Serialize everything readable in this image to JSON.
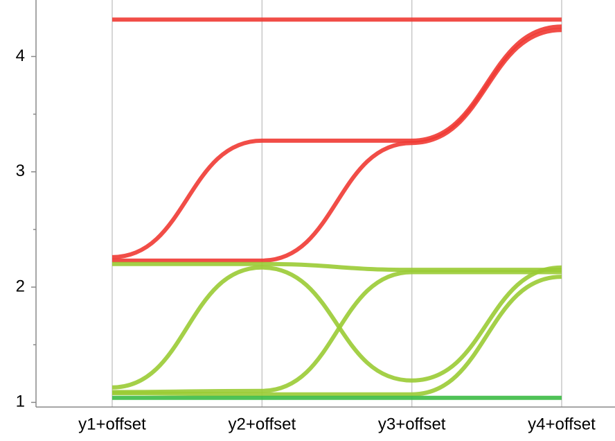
{
  "chart_data": {
    "type": "parallel",
    "categories": [
      "y1+offset",
      "y2+offset",
      "y3+offset",
      "y4+offset"
    ],
    "ylim": [
      0.96,
      4.49
    ],
    "yticks": [
      1,
      2,
      3,
      4
    ],
    "minor_yticks": [
      1.5,
      2.5,
      3.5
    ],
    "grid": true,
    "series": [
      {
        "color": "#f03a33",
        "values": [
          4.32,
          4.32,
          4.32,
          4.32
        ]
      },
      {
        "color": "#f03a33",
        "values": [
          2.26,
          3.27,
          3.27,
          4.26
        ]
      },
      {
        "color": "#f03a33",
        "values": [
          2.23,
          2.23,
          3.25,
          4.23
        ]
      },
      {
        "color": "#9acb34",
        "values": [
          2.2,
          2.2,
          2.15,
          2.15
        ]
      },
      {
        "color": "#9acb34",
        "values": [
          1.13,
          2.17,
          1.19,
          2.17
        ]
      },
      {
        "color": "#9acb34",
        "values": [
          1.09,
          1.1,
          2.13,
          2.13
        ]
      },
      {
        "color": "#9acb34",
        "values": [
          1.08,
          1.07,
          1.07,
          2.09
        ]
      },
      {
        "color": "#3cbb45",
        "values": [
          1.04,
          1.04,
          1.04,
          1.04
        ]
      }
    ]
  }
}
